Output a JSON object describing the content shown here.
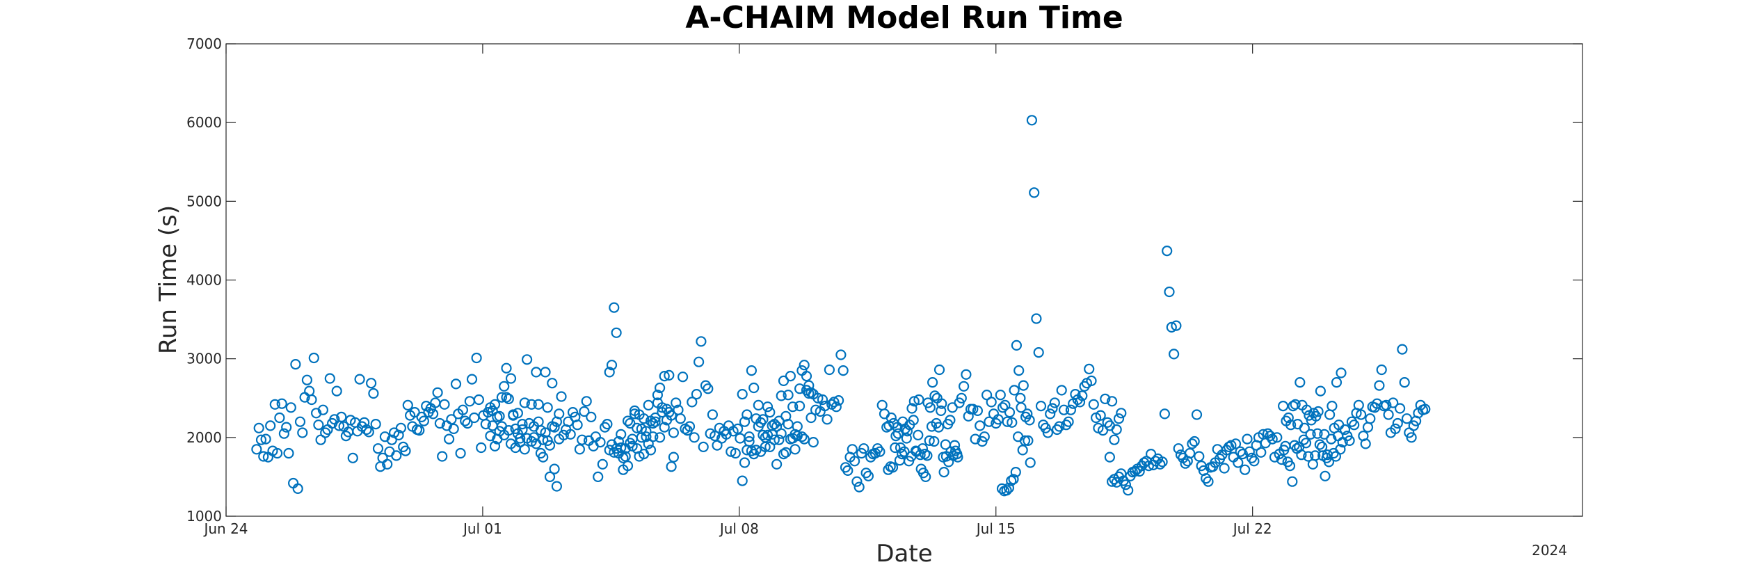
{
  "chart_data": {
    "type": "scatter",
    "title": "A-CHAIM Model Run Time",
    "xlabel": "Date",
    "ylabel": "Run Time (s)",
    "xlim": [
      "2024-06-24",
      "2024-07-31"
    ],
    "ylim": [
      1000,
      7000
    ],
    "x_ticks": [
      {
        "date": "2024-06-24",
        "label": "Jun 24"
      },
      {
        "date": "2024-07-01",
        "label": "Jul 01"
      },
      {
        "date": "2024-07-08",
        "label": "Jul 08"
      },
      {
        "date": "2024-07-15",
        "label": "Jul 15"
      },
      {
        "date": "2024-07-22",
        "label": "Jul 22"
      }
    ],
    "year_label": "2024",
    "y_ticks": [
      1000,
      2000,
      3000,
      4000,
      5000,
      6000,
      7000
    ],
    "grid": false,
    "marker": "open-circle",
    "marker_color": "#0072BD",
    "axis_color": "#262626",
    "segments": [
      {
        "start": "2024-06-24 20:00",
        "interval_hours": 1.5,
        "values": [
          1850,
          2120,
          1970,
          1760,
          1980,
          1750,
          2150,
          1830,
          2420,
          1800,
          2250,
          2430,
          2050,
          2130,
          1800,
          2380,
          1420,
          2930,
          1350,
          2200,
          2060,
          2510,
          2730,
          2590,
          2480,
          3010,
          2310,
          2160,
          1970,
          2350,
          2060,
          2100,
          2750,
          2180,
          2230,
          2590,
          2150,
          2260,
          2140,
          2020,
          2070,
          2220,
          1740,
          2190,
          2080,
          2740,
          2140,
          2190,
          2100,
          2070,
          2690,
          2560,
          2170,
          1860,
          1630,
          1740,
          2010,
          1660,
          1820,
          1970,
          2060,
          1770,
          2030,
          2120,
          1880,
          1830,
          2410,
          2280,
          2140,
          2320,
          2100,
          2090,
          2260,
          2210,
          2400,
          2320,
          2370,
          2300,
          2440,
          2570,
          2180,
          1760,
          2420,
          2150,
          1980,
          2230,
          2110,
          2680,
          2300,
          1800,
          2350,
          2210,
          2180,
          2460,
          2740,
          2250,
          3010,
          2480,
          1870,
          2280,
          2170,
          2320,
          2020,
          2150,
          1890,
          1980,
          2080,
          2140,
          2030,
          2510,
          2090,
          1920,
          2280,
          2110,
          2310,
          1990,
          2170,
          2440,
          2990,
          2180,
          1950,
          2000,
          1920,
          2200,
          2090,
          1970,
          2060,
          1960,
          1500,
          2690,
          2130,
          2200,
          1980
        ]
      },
      {
        "start": "2024-07-01 05:00",
        "interval_hours": 1.5,
        "values": [
          2380,
          2340,
          2420,
          2260,
          2270,
          2510,
          2650,
          2880,
          2490,
          2750,
          2290,
          1870,
          2050,
          1940,
          2100,
          1850,
          1990,
          2180,
          2420,
          2140,
          2830,
          2420,
          1800,
          1750,
          2830,
          2380,
          1900,
          2140,
          1600,
          1380,
          2300,
          2520,
          2030,
          2100,
          2200,
          2040,
          2320,
          2260,
          2160,
          1850,
          1970,
          2330,
          2460,
          1960,
          2260,
          1890,
          2010,
          1500,
          1940,
          1660,
          2130,
          2170,
          2830,
          2920,
          3650,
          3330,
          1800,
          1870,
          1590,
          1760,
          2210,
          2180,
          1890,
          2340,
          2120,
          2290,
          2110,
          2240,
          2080,
          2410,
          2210,
          2180,
          2250,
          2540,
          2630,
          2320,
          2780,
          2220,
          2790,
          1630,
          1750
        ]
      },
      {
        "start": "2024-07-04 11:00",
        "interval_hours": 1.5,
        "values": [
          1840,
          1910,
          1810,
          1860,
          1950,
          2040,
          1740,
          1860,
          1640,
          1930,
          1980,
          2300,
          1860,
          1760,
          2000,
          1790,
          2010,
          1920,
          1840,
          2010,
          2200,
          2440,
          2000,
          2380,
          2130,
          2360,
          2320,
          2280,
          2060,
          2440,
          2350,
          2240,
          2770,
          2110,
          2090,
          2140,
          2450,
          2000,
          2550,
          2960,
          3220,
          1880,
          2660,
          2620,
          2050,
          2290,
          2020,
          1900,
          2120,
          1990,
          2080,
          2040,
          2150,
          1820,
          2080,
          1800,
          2110,
          1990,
          2550,
          2200,
          2290,
          2010,
          2850,
          2630,
          2240,
          2410,
          2190,
          2230,
          2000,
          2030,
          1880,
          2040,
          1970,
          2140,
          2210,
          2530,
          2720,
          1810,
          2170,
          2780,
          1990,
          2040,
          2020,
          2620,
          2850,
          2920,
          2780,
          2660,
          2570,
          2550
        ]
      },
      {
        "start": "2024-07-08 02:00",
        "interval_hours": 1.5,
        "values": [
          1450,
          1680,
          1840,
          1950,
          1830,
          1790,
          1840,
          2140,
          1820,
          2030,
          1880,
          2390,
          2320,
          2150,
          2170,
          1660,
          1970,
          2050,
          1790,
          2270,
          2540,
          1980,
          2390,
          1850,
          2140,
          2400,
          2010,
          1980,
          2600,
          2560,
          2250,
          1940,
          2350,
          2500,
          2330,
          2480,
          2400,
          2230,
          2860,
          2420,
          2450,
          2390,
          2470,
          3050,
          2850,
          1620,
          1580,
          1750,
          1850,
          1700,
          1440,
          1370,
          1800,
          1860,
          1550,
          1510,
          1750,
          1790,
          1800,
          1860,
          1820,
          2410,
          2300,
          2130,
          2150,
          2250,
          2180,
          2020,
          2050,
          1870,
          2200,
          2110,
          2080,
          2160,
          2370,
          2460,
          1820,
          2480,
          1600,
          1550,
          1500,
          2440,
          2380,
          2700,
          2530,
          2500,
          2860,
          2430,
          1560,
          1760,
          1690,
          1820,
          1770,
          1830,
          1750
        ]
      },
      {
        "start": "2024-07-12 01:30",
        "interval_hours": 1.5,
        "values": [
          1590,
          1630,
          1620,
          1870,
          2130,
          1710,
          1790,
          1820,
          1990,
          1700,
          1760,
          2220,
          1830,
          2030,
          1780,
          1860,
          1790,
          1770,
          1960,
          2140,
          1950,
          2180,
          2130,
          2340,
          1750,
          1910,
          2170,
          2220,
          2380,
          1900,
          1790,
          2440,
          2500,
          2650,
          2800,
          2270,
          2360,
          2360,
          1980,
          2340,
          2150,
          1950,
          2010,
          2540,
          2200,
          2450,
          2300,
          2180,
          2230,
          2540,
          2380,
          2410,
          2200,
          2320,
          2190,
          2600,
          3170,
          2850,
          2380,
          2660,
          2260,
          1960,
          1680
        ]
      },
      {
        "start": "2024-07-15 04:00",
        "interval_hours": 1.5,
        "values": [
          1350,
          1320,
          1330,
          1360,
          1450,
          1470,
          1560,
          2010,
          2500,
          1840,
          1960,
          2300,
          2220,
          6030,
          5110,
          3510,
          3080,
          2400,
          2160,
          2120,
          2060,
          2300,
          2370,
          2440,
          2100,
          2140,
          2600,
          2350,
          2160,
          2200,
          2350,
          2430,
          2550,
          2480,
          2450,
          2530,
          2650,
          2690,
          2870,
          2720,
          2420,
          2250,
          2120,
          2280,
          2090,
          2490,
          2190,
          2150,
          2460,
          1970,
          2100,
          2240,
          2310
        ]
      },
      {
        "start": "2024-07-18 02:30",
        "interval_hours": 1.5,
        "values": [
          1750,
          1440,
          1470,
          1430,
          1500,
          1540,
          1450,
          1400,
          1330,
          1510,
          1560,
          1570,
          1600,
          1570,
          1640,
          1680,
          1700,
          1640,
          1790,
          1650,
          1700,
          1730,
          1660,
          1690,
          2300,
          4370,
          3850,
          3400,
          3060,
          3420,
          1860,
          1780,
          1740,
          1670,
          1700,
          1800,
          1920,
          1950,
          2290,
          1760,
          1640,
          1580,
          1480,
          1440,
          1620,
          1630,
          1680,
          1850,
          1730,
          1780,
          1610,
          1840,
          1880,
          1900,
          1750,
          1920,
          1680,
          1820,
          1790,
          1590,
          1980,
          1820,
          1740,
          1700,
          1900,
          2000,
          1810,
          2040,
          1930,
          2050,
          2020,
          1980,
          1750,
          2000,
          1790,
          1720,
          1840,
          2210,
          2250,
          2160,
          2400,
          2420,
          2170,
          2700,
          2410,
          2120,
          2350,
          2280,
          2220,
          2310,
          2270,
          2330,
          2590,
          1770,
          1510,
          1780,
          2290,
          2400,
          2120,
          2700,
          2160,
          2820
        ]
      },
      {
        "start": "2024-07-22 20:00",
        "interval_hours": 1.5,
        "values": [
          2400,
          1890,
          1690,
          1640,
          1440,
          1900,
          1860,
          1880,
          1780,
          1970,
          1930,
          1760,
          2040,
          1660,
          1770,
          2050,
          1910,
          1880,
          2040,
          1740,
          1690,
          1980,
          1800,
          1760,
          2020,
          1850,
          1940,
          2100,
          2020,
          1960,
          2200,
          2160,
          2310,
          2410,
          2290,
          2020,
          1920,
          2130,
          2240,
          2390,
          2380,
          2430,
          2660,
          2860,
          2400,
          2410,
          2290,
          2060,
          2440,
          2110,
          2180,
          2370,
          3120,
          2700,
          2240,
          2060,
          2000,
          2150,
          2210,
          2310,
          2410,
          2350,
          2360
        ]
      }
    ]
  }
}
